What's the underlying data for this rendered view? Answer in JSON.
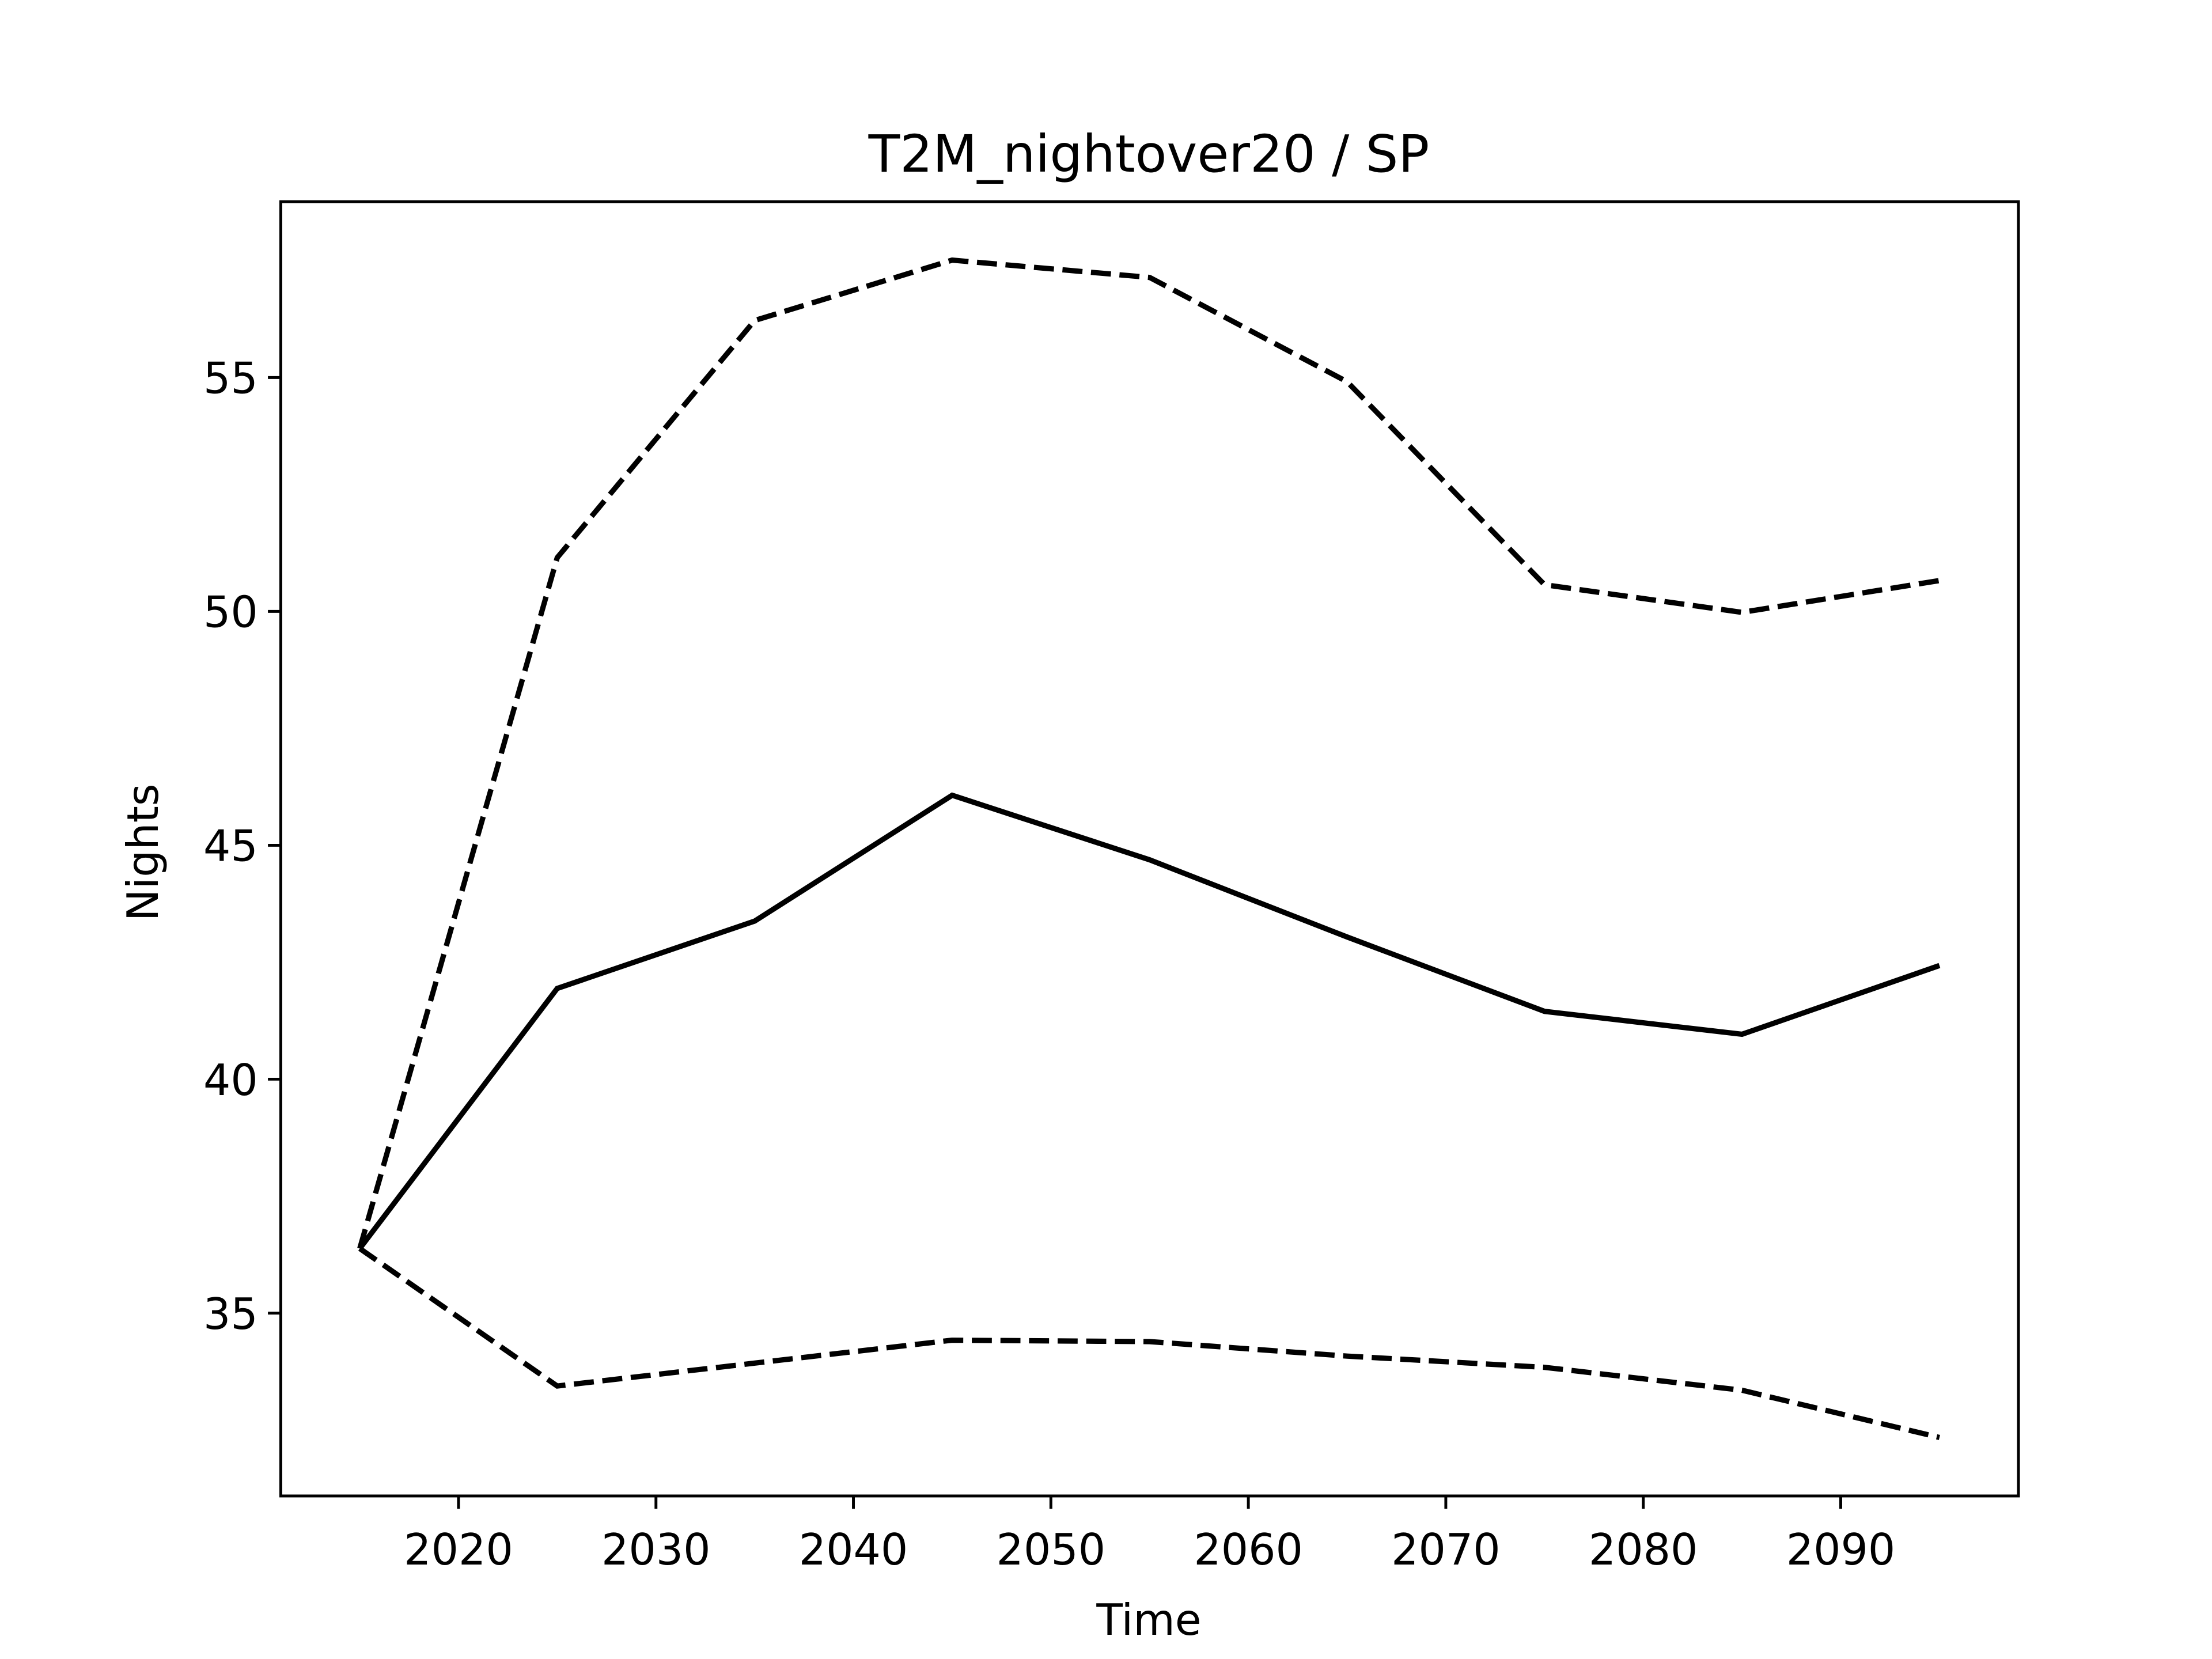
{
  "chart_data": {
    "type": "line",
    "title": "T2M_nightover20 / SP",
    "xlabel": "Time",
    "ylabel": "Nights",
    "x": [
      2015,
      2025,
      2035,
      2045,
      2055,
      2065,
      2075,
      2085,
      2095
    ],
    "series": [
      {
        "color": "#000000",
        "linestyle": "solid",
        "values": [
          36.38,
          41.94,
          43.38,
          46.07,
          44.69,
          43.04,
          41.45,
          40.96,
          42.43
        ]
      },
      {
        "color": "#000000",
        "linestyle": "dashed",
        "values": [
          36.38,
          51.15,
          56.22,
          57.51,
          57.14,
          54.91,
          50.57,
          49.98,
          50.66
        ]
      },
      {
        "color": "#000000",
        "linestyle": "dashed",
        "values": [
          36.38,
          33.44,
          33.93,
          34.42,
          34.39,
          34.08,
          33.84,
          33.35,
          32.34
        ]
      }
    ],
    "xlim": [
      2011,
      2099
    ],
    "xticks": [
      2020,
      2030,
      2040,
      2050,
      2060,
      2070,
      2080,
      2090
    ],
    "ylim": [
      31.09,
      58.76
    ],
    "yticks": [
      35,
      40,
      45,
      50,
      55
    ],
    "grid": false
  }
}
